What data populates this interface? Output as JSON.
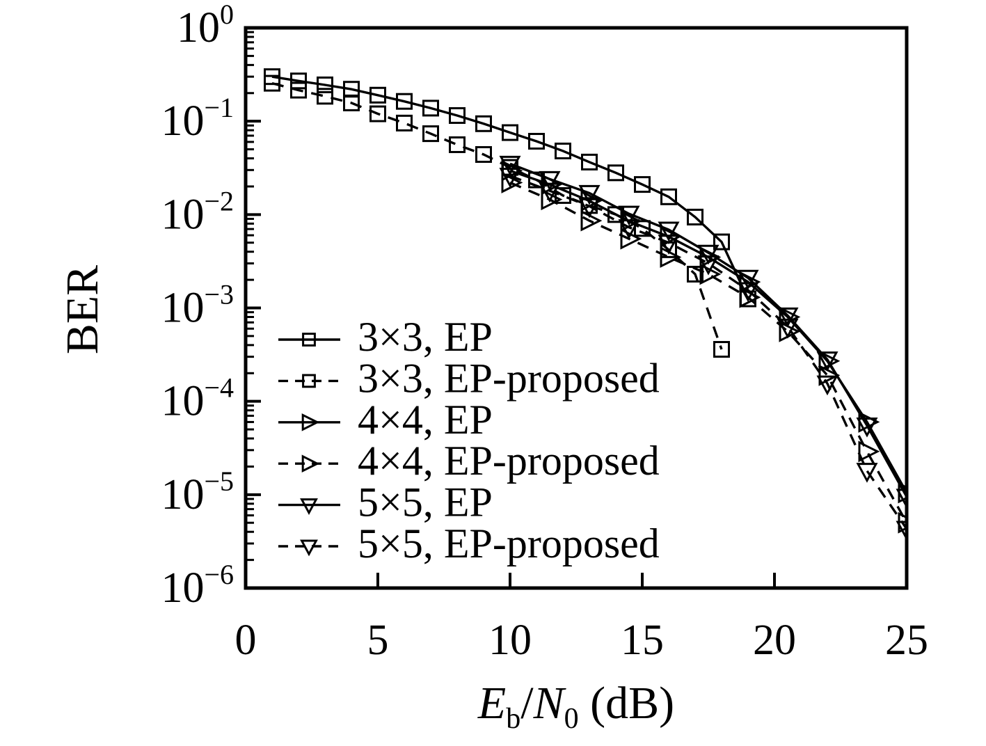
{
  "figure": {
    "background": "#ffffff",
    "ink_color": "#000000"
  },
  "chart_data": {
    "type": "line",
    "title": "",
    "xlabel": "Eb/N0 (dB)",
    "xlabel_rich": {
      "sym1": "E",
      "sub1": "b",
      "sep": "/",
      "sym2": "N",
      "sub2": "0",
      "unit": " (dB)"
    },
    "ylabel": "BER",
    "x_axis": {
      "min": 0,
      "max": 25,
      "ticks": [
        0,
        5,
        10,
        15,
        20,
        25
      ]
    },
    "y_axis": {
      "scale": "log",
      "min": 1e-06,
      "max": 1,
      "tick_exponents": [
        0,
        -1,
        -2,
        -3,
        -4,
        -5,
        -6
      ],
      "minor_ticks": true
    },
    "grid": false,
    "legend_position": "inside-middle-left",
    "series": [
      {
        "name": "3×3, EP",
        "marker": "square",
        "line_style": "solid",
        "color": "#000000",
        "points": [
          [
            1,
            0.3
          ],
          [
            2,
            0.27
          ],
          [
            3,
            0.245
          ],
          [
            4,
            0.22
          ],
          [
            5,
            0.19
          ],
          [
            6,
            0.163
          ],
          [
            7,
            0.138
          ],
          [
            8,
            0.115
          ],
          [
            9,
            0.094
          ],
          [
            10,
            0.0755
          ],
          [
            11,
            0.061
          ],
          [
            12,
            0.048
          ],
          [
            13,
            0.0365
          ],
          [
            14,
            0.028
          ],
          [
            15,
            0.021
          ],
          [
            16,
            0.0155
          ],
          [
            17,
            0.0094
          ],
          [
            18,
            0.0051
          ],
          [
            19,
            0.00125
          ]
        ]
      },
      {
        "name": "3×3, EP-proposed",
        "marker": "square",
        "line_style": "dashed",
        "color": "#000000",
        "points": [
          [
            1,
            0.255
          ],
          [
            2,
            0.215
          ],
          [
            3,
            0.185
          ],
          [
            4,
            0.157
          ],
          [
            5,
            0.12
          ],
          [
            6,
            0.0955
          ],
          [
            7,
            0.0735
          ],
          [
            8,
            0.056
          ],
          [
            9,
            0.044
          ],
          [
            10,
            0.032
          ],
          [
            11,
            0.0235
          ],
          [
            12,
            0.016
          ],
          [
            13,
            0.0125
          ],
          [
            14,
            0.01
          ],
          [
            15,
            0.0071
          ],
          [
            16,
            0.0042
          ],
          [
            17,
            0.0023
          ],
          [
            18,
            0.00036
          ]
        ]
      },
      {
        "name": "4×4, EP",
        "marker": "triangle-right",
        "line_style": "solid",
        "color": "#000000",
        "points": [
          [
            10,
            0.0295
          ],
          [
            11.5,
            0.021
          ],
          [
            13,
            0.014
          ],
          [
            14.5,
            0.0085
          ],
          [
            16,
            0.0058
          ],
          [
            17.5,
            0.0035
          ],
          [
            19,
            0.0019
          ],
          [
            20.5,
            0.0008
          ],
          [
            22,
            0.00027
          ],
          [
            23.5,
            6e-05
          ],
          [
            25,
            1.05e-05
          ]
        ]
      },
      {
        "name": "4×4, EP-proposed",
        "marker": "triangle-right",
        "line_style": "dashed",
        "color": "#000000",
        "points": [
          [
            10,
            0.022
          ],
          [
            11.5,
            0.0145
          ],
          [
            13,
            0.0086
          ],
          [
            14.5,
            0.0055
          ],
          [
            16,
            0.0035
          ],
          [
            17.5,
            0.0023
          ],
          [
            19,
            0.0013
          ],
          [
            20.5,
            0.00056
          ],
          [
            22,
            0.00019
          ],
          [
            23.5,
            2.9e-05
          ],
          [
            25,
            5e-06
          ]
        ]
      },
      {
        "name": "5×5, EP",
        "marker": "triangle-down",
        "line_style": "solid",
        "color": "#000000",
        "points": [
          [
            10,
            0.035
          ],
          [
            11.5,
            0.024
          ],
          [
            13,
            0.017
          ],
          [
            14.5,
            0.0102
          ],
          [
            16,
            0.0069
          ],
          [
            17.5,
            0.0039
          ],
          [
            19,
            0.0021
          ],
          [
            20.5,
            0.00083
          ],
          [
            22,
            0.00028
          ],
          [
            23.5,
            5.5e-05
          ],
          [
            25,
            9.5e-06
          ]
        ]
      },
      {
        "name": "5×5, EP-proposed",
        "marker": "triangle-down",
        "line_style": "dashed",
        "color": "#000000",
        "points": [
          [
            10,
            0.026
          ],
          [
            11.5,
            0.018
          ],
          [
            13,
            0.0123
          ],
          [
            14.5,
            0.0073
          ],
          [
            16,
            0.005
          ],
          [
            17.5,
            0.003
          ],
          [
            19,
            0.00155
          ],
          [
            20.5,
            0.00063
          ],
          [
            22,
            0.000155
          ],
          [
            23.5,
            1.8e-05
          ],
          [
            25,
            4.3e-06
          ]
        ]
      }
    ]
  }
}
